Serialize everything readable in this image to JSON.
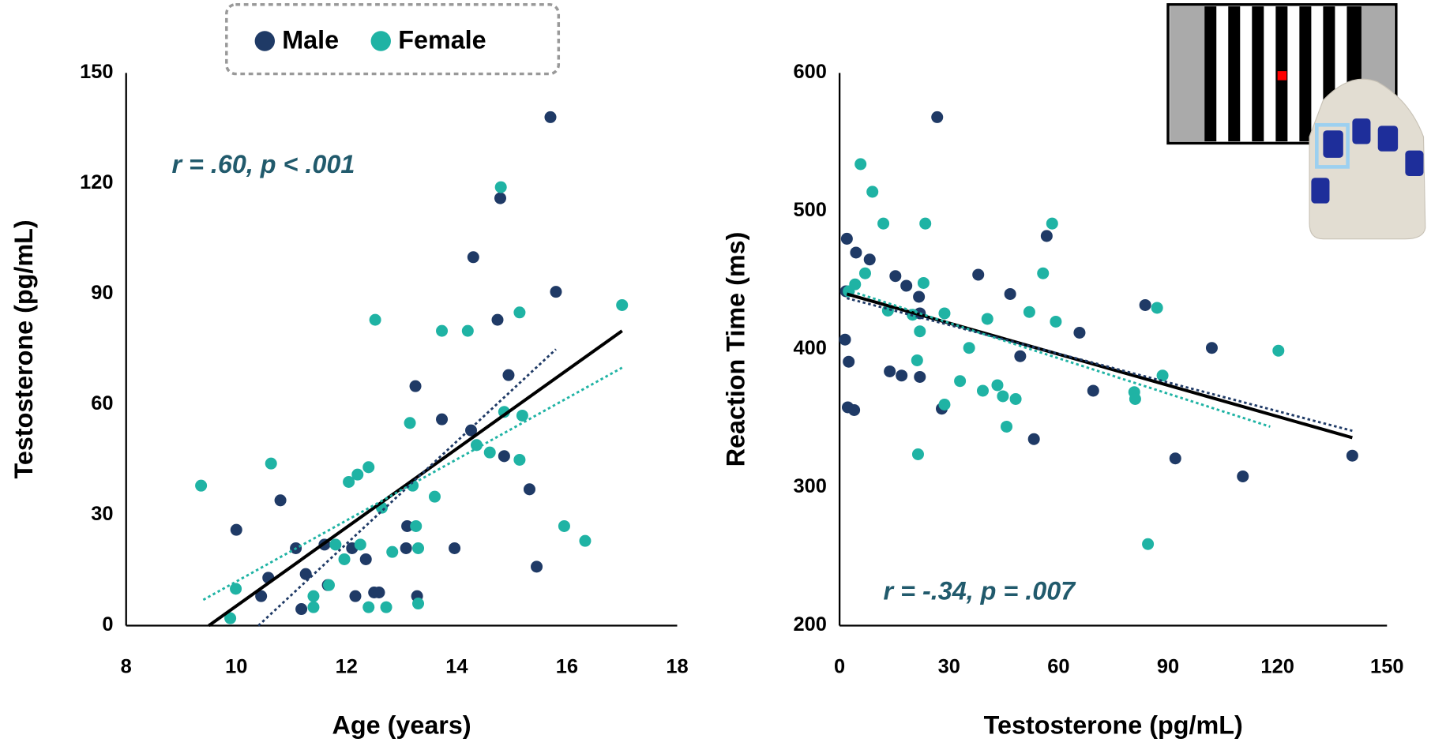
{
  "chart_data": [
    {
      "type": "scatter",
      "xlabel": "Age (years)",
      "ylabel": "Testosterone (pg/mL)",
      "annotation": "r = .60, p < .001",
      "xlim": [
        8,
        18
      ],
      "xticks": [
        8,
        10,
        12,
        14,
        16,
        18
      ],
      "ylim": [
        0,
        150
      ],
      "yticks": [
        0,
        30,
        60,
        90,
        120,
        150
      ],
      "legend": "top-center",
      "series": [
        {
          "name": "Male",
          "color": "#1f3a66",
          "x": [
            10.0,
            10.8,
            10.58,
            10.45,
            11.08,
            11.26,
            11.18,
            11.6,
            11.66,
            12.1,
            12.16,
            12.35,
            12.5,
            12.59,
            13.1,
            13.08,
            13.25,
            13.28,
            13.73,
            13.96,
            14.26,
            14.3,
            14.74,
            14.94,
            14.79,
            14.86,
            15.32,
            15.45,
            15.7,
            15.8
          ],
          "values": [
            26,
            34,
            13,
            8,
            21,
            14,
            4.5,
            22,
            11,
            21,
            8,
            18,
            9,
            9,
            27,
            21,
            65,
            8,
            56,
            21,
            53,
            100,
            83,
            68,
            116,
            46,
            37,
            16,
            138,
            90.6
          ]
        },
        {
          "name": "Female",
          "color": "#1fb3a4",
          "x": [
            9.36,
            9.89,
            9.99,
            10.63,
            11.4,
            11.4,
            11.68,
            11.8,
            11.96,
            12.04,
            12.2,
            12.25,
            12.4,
            12.4,
            12.52,
            12.64,
            12.72,
            12.83,
            13.15,
            13.2,
            13.26,
            13.3,
            13.3,
            13.6,
            13.73,
            14.2,
            14.36,
            14.6,
            14.8,
            14.86,
            15.14,
            15.14,
            15.19,
            15.95,
            16.33,
            17.0
          ],
          "values": [
            38,
            2,
            10,
            44,
            8,
            5,
            11,
            22,
            18,
            39,
            41,
            22,
            43,
            5,
            83,
            32,
            5,
            20,
            55,
            38,
            27,
            21,
            6,
            35,
            80,
            80,
            49,
            47,
            119,
            58,
            85,
            45,
            57,
            27,
            23,
            87
          ]
        }
      ],
      "trend_lines": [
        {
          "color": "#000000",
          "dashed": false,
          "x": [
            9.5,
            17.0
          ],
          "values": [
            0,
            80
          ]
        },
        {
          "color": "#1f3a66",
          "dashed": true,
          "x": [
            10.4,
            15.8
          ],
          "values": [
            0,
            75
          ]
        },
        {
          "color": "#1fb3a4",
          "dashed": true,
          "x": [
            9.4,
            17.0
          ],
          "values": [
            7,
            70
          ]
        }
      ]
    },
    {
      "type": "scatter",
      "xlabel": "Testosterone (pg/mL)",
      "ylabel": "Reaction Time (ms)",
      "annotation": "r = -.34, p = .007",
      "xlim": [
        0,
        150
      ],
      "xticks": [
        0,
        30,
        60,
        90,
        120,
        150
      ],
      "ylim": [
        200,
        600
      ],
      "yticks": [
        200,
        300,
        400,
        500,
        600
      ],
      "series": [
        {
          "color": "#1f3a66",
          "x": [
            26.75,
            1.75,
            2,
            4.5,
            8.25,
            15.3,
            18.3,
            21.75,
            22,
            1.5,
            2.5,
            2.25,
            4,
            13.75,
            17,
            22,
            38,
            46.75,
            49.5,
            56.75,
            65.75,
            69.5,
            53.25,
            28,
            83.75,
            92,
            102,
            110.5,
            140.5
          ],
          "values": [
            568,
            442,
            480,
            470,
            465,
            453,
            446,
            438,
            426,
            407,
            391,
            358,
            356,
            384,
            381,
            380,
            454,
            440,
            395,
            482,
            412,
            370,
            335,
            357,
            432,
            321,
            401,
            308,
            323
          ]
        },
        {
          "color": "#1fb3a4",
          "x": [
            5.75,
            9,
            2.5,
            4.25,
            7,
            12,
            23.5,
            23,
            20,
            13.25,
            22,
            21.25,
            28.75,
            35.5,
            33,
            28.75,
            21.5,
            39.25,
            40.5,
            43.25,
            44.75,
            48.25,
            45.75,
            52,
            55.75,
            58.25,
            59.25,
            80.75,
            81,
            84.5,
            87,
            88.5,
            120.25
          ],
          "values": [
            534,
            514,
            442,
            447,
            455,
            491,
            491,
            448,
            425,
            428,
            413,
            392,
            426,
            401,
            377,
            360,
            324,
            370,
            422,
            374,
            366,
            364,
            344,
            427,
            455,
            491,
            420,
            369,
            364,
            259,
            430,
            381,
            399
          ]
        }
      ],
      "trend_lines": [
        {
          "color": "#000000",
          "dashed": false,
          "x": [
            2,
            140.5
          ],
          "values": [
            440,
            336
          ]
        },
        {
          "color": "#1f3a66",
          "dashed": true,
          "x": [
            2,
            140.5
          ],
          "values": [
            437,
            341
          ]
        },
        {
          "color": "#1fb3a4",
          "dashed": true,
          "x": [
            2,
            118
          ],
          "values": [
            443,
            344
          ]
        }
      ]
    }
  ]
}
